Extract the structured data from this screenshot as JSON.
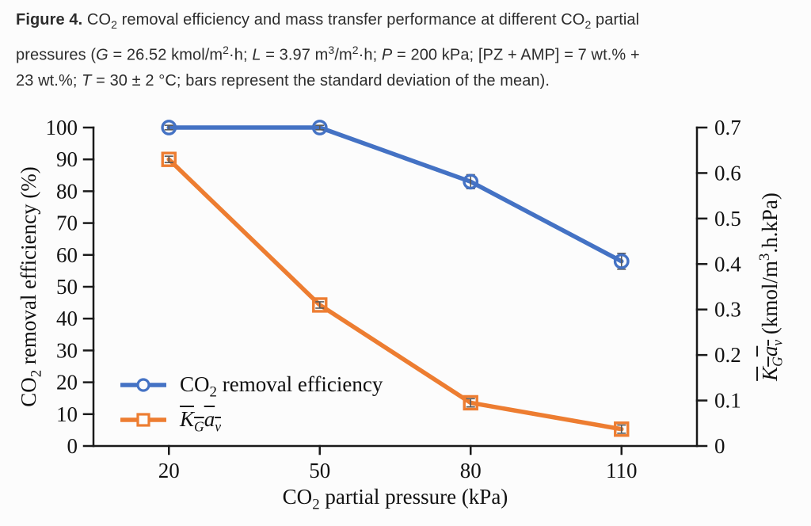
{
  "caption": {
    "segments": [
      {
        "t": "Figure 4.",
        "s": "bold"
      },
      {
        "t": " CO"
      },
      {
        "t": "2",
        "s": "sub"
      },
      {
        "t": " removal efficiency and mass transfer performance at different CO"
      },
      {
        "t": "2",
        "s": "sub"
      },
      {
        "t": " partial"
      },
      {
        "s": "br"
      },
      {
        "t": "pressures ("
      },
      {
        "t": "G",
        "s": "italic"
      },
      {
        "t": " = 26.52 kmol/m"
      },
      {
        "t": "2",
        "s": "sup"
      },
      {
        "t": "·h; "
      },
      {
        "t": "L",
        "s": "italic"
      },
      {
        "t": " = 3.97 m"
      },
      {
        "t": "3",
        "s": "sup"
      },
      {
        "t": "/m"
      },
      {
        "t": "2",
        "s": "sup"
      },
      {
        "t": "·h; "
      },
      {
        "t": "P",
        "s": "italic"
      },
      {
        "t": " = 200 kPa; [PZ + AMP] = 7 wt.% +"
      },
      {
        "s": "br"
      },
      {
        "t": "23 wt.%; "
      },
      {
        "t": "T",
        "s": "italic"
      },
      {
        "t": " = 30 ± 2 °C; bars represent the standard deviation of the mean)."
      }
    ]
  },
  "chart_data": {
    "type": "line",
    "categories": [
      20,
      50,
      80,
      110
    ],
    "xlabel": "CO2 partial pressure (kPa)",
    "xlabel_segments": [
      {
        "t": "CO"
      },
      {
        "t": "2",
        "s": "sub"
      },
      {
        "t": " partial pressure (kPa)"
      }
    ],
    "left_axis": {
      "label": "CO2 removal efficiency (%)",
      "label_segments": [
        {
          "t": "CO"
        },
        {
          "t": "2",
          "s": "sub"
        },
        {
          "t": " removal efficiency (%)"
        }
      ],
      "ticks": [
        0,
        10,
        20,
        30,
        40,
        50,
        60,
        70,
        80,
        90,
        100
      ],
      "range": [
        0,
        100
      ]
    },
    "right_axis": {
      "label": "KGav (kmol/m3.h.kPa)",
      "label_segments": [
        {
          "s": "overline",
          "g": [
            {
              "t": "K",
              "s": "italic"
            },
            {
              "t": "G",
              "s": "sub-italic"
            },
            {
              "t": "a",
              "s": "italic"
            },
            {
              "t": "v",
              "s": "sub-italic"
            }
          ]
        },
        {
          "t": " (kmol/m"
        },
        {
          "t": "3",
          "s": "sup"
        },
        {
          "t": ".h.kPa)"
        }
      ],
      "ticks": [
        "0",
        "0.1",
        "0.2",
        "0.3",
        "0.4",
        "0.5",
        "0.6",
        "0.7"
      ],
      "range": [
        0,
        0.7
      ]
    },
    "series": [
      {
        "name": "CO2 removal efficiency",
        "label_segments": [
          {
            "t": "CO"
          },
          {
            "t": "2",
            "s": "sub"
          },
          {
            "t": " removal efficiency"
          }
        ],
        "axis": "left",
        "marker": "circle",
        "color": "#4472C4",
        "values": [
          100,
          100,
          83,
          58
        ],
        "errors": [
          0.7,
          0.7,
          2.2,
          2.5
        ]
      },
      {
        "name": "KGav",
        "label_segments": [
          {
            "s": "overline",
            "g": [
              {
                "t": "K",
                "s": "italic"
              },
              {
                "t": "G",
                "s": "sub-italic"
              },
              {
                "t": "a",
                "s": "italic"
              },
              {
                "t": "v",
                "s": "sub-italic"
              }
            ]
          }
        ],
        "axis": "right",
        "marker": "square",
        "color": "#ED7D31",
        "values": [
          0.63,
          0.31,
          0.095,
          0.037
        ],
        "errors": [
          0.007,
          0.007,
          0.009,
          0.009
        ]
      }
    ],
    "legend_position": "inside-lower-left",
    "grid": false
  },
  "colors": {
    "axis": "#1a1a1a",
    "error_bar": "#595959",
    "series_blue": "#4472C4",
    "series_orange": "#ED7D31",
    "text": "#111111",
    "caption_text": "#2d2d2d",
    "background": "#fcfcfc"
  }
}
